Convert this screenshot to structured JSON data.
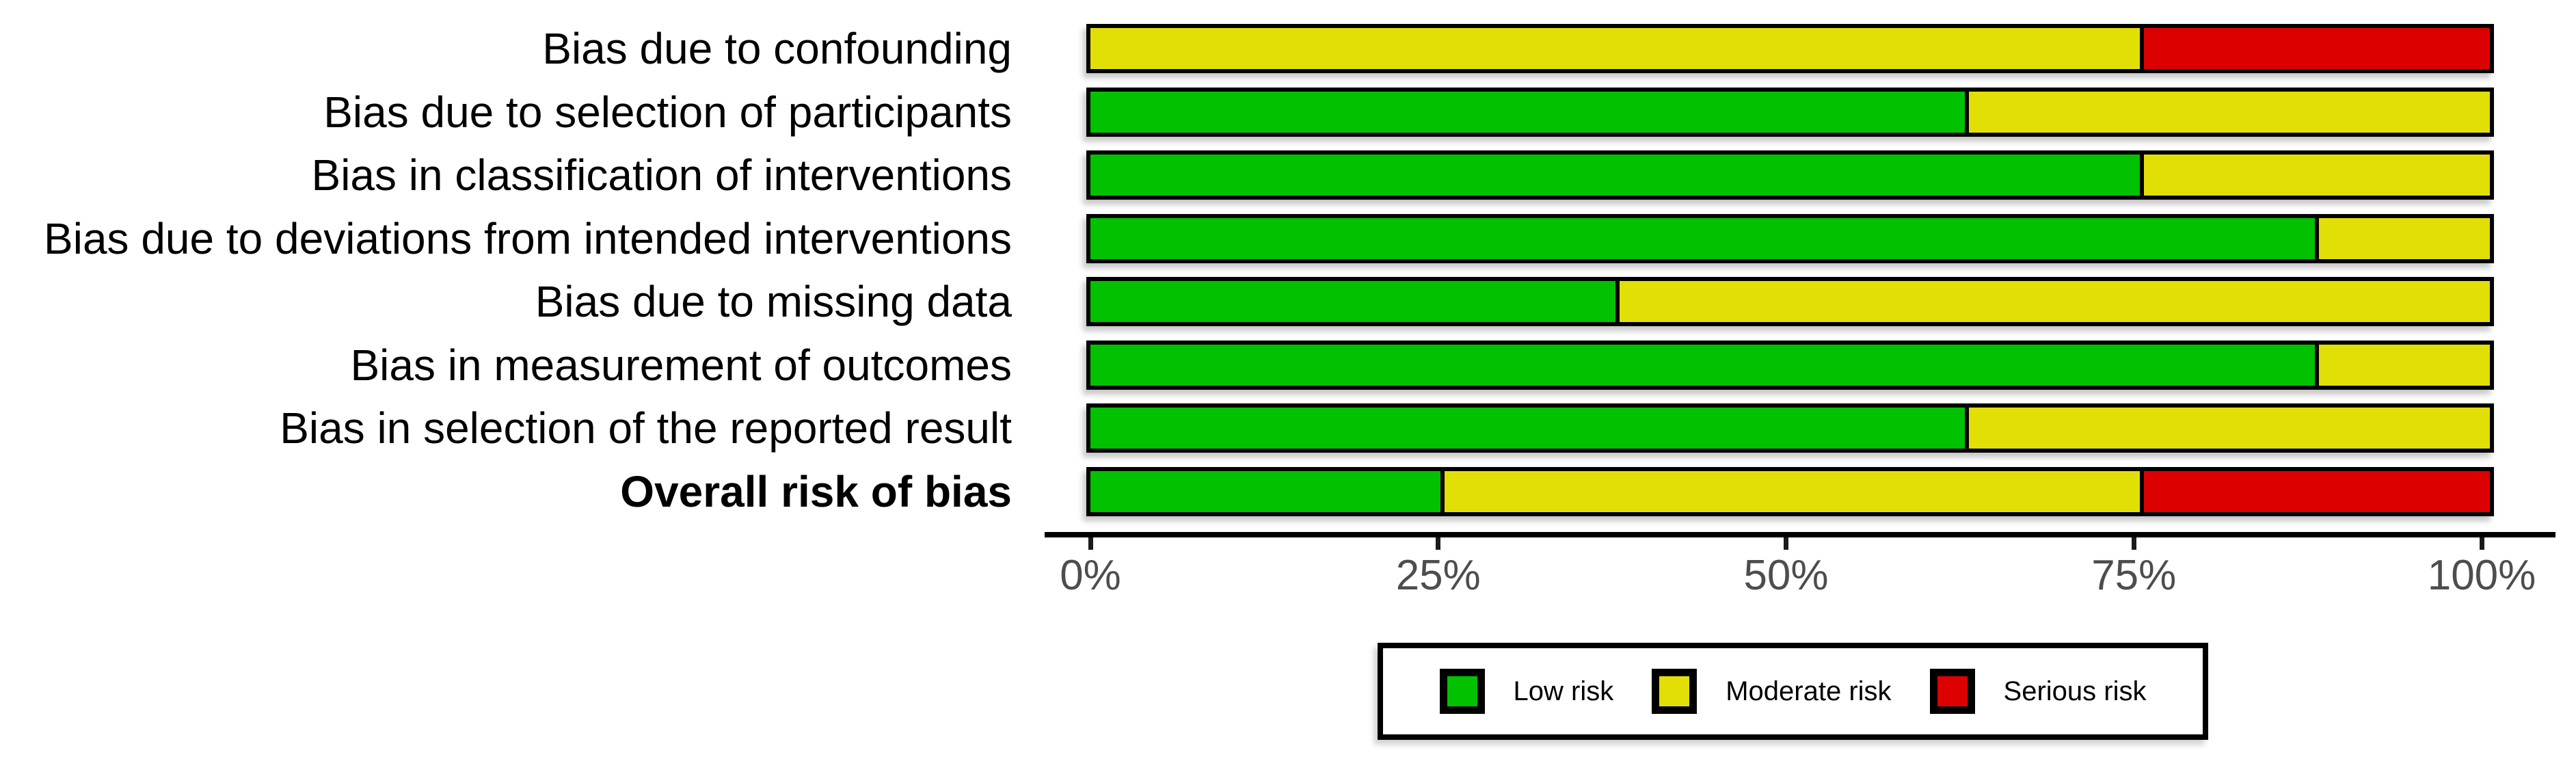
{
  "chart_data": {
    "type": "bar",
    "variant": "stacked-horizontal",
    "title": "",
    "xlabel": "",
    "ylabel": "",
    "xlim": [
      0,
      100
    ],
    "grid": false,
    "legend_position": "bottom",
    "categories": [
      {
        "label": "Bias due to confounding",
        "bold": false
      },
      {
        "label": "Bias due to selection of participants",
        "bold": false
      },
      {
        "label": "Bias in classification of interventions",
        "bold": false
      },
      {
        "label": "Bias due to deviations from intended interventions",
        "bold": false
      },
      {
        "label": "Bias due to missing data",
        "bold": false
      },
      {
        "label": "Bias in measurement of outcomes",
        "bold": false
      },
      {
        "label": "Bias in selection of the reported result",
        "bold": false
      },
      {
        "label": "Overall risk of bias",
        "bold": true
      }
    ],
    "series": [
      {
        "name": "Low risk",
        "color": "#02C100",
        "values": [
          0,
          62.5,
          75,
          87.5,
          37.5,
          87.5,
          62.5,
          25
        ]
      },
      {
        "name": "Moderate risk",
        "color": "#E2DF07",
        "values": [
          75,
          37.5,
          25,
          12.5,
          62.5,
          12.5,
          37.5,
          50
        ]
      },
      {
        "name": "Serious risk",
        "color": "#DD0000",
        "values": [
          25,
          0,
          0,
          0,
          0,
          0,
          0,
          25
        ]
      }
    ],
    "x_ticks": [
      {
        "label": "0%",
        "value": 0
      },
      {
        "label": "25%",
        "value": 25
      },
      {
        "label": "50%",
        "value": 50
      },
      {
        "label": "75%",
        "value": 75
      },
      {
        "label": "100%",
        "value": 100
      }
    ],
    "axis_tick_label_color": "#4d4d4d",
    "bar_border_color": "#000000"
  },
  "layout_note": "risk-of-bias summary barplot"
}
